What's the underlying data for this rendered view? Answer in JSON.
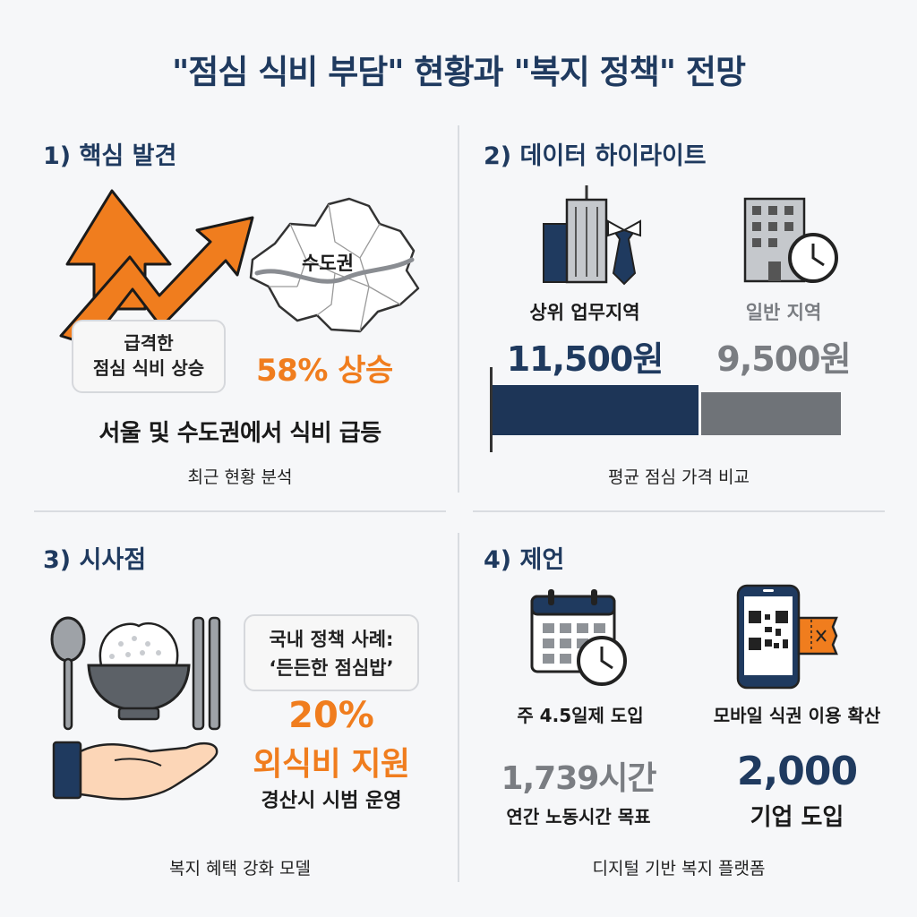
{
  "title": "\"점심 식비 부담\" 현황과 \"복지 정책\" 전망",
  "section1": {
    "heading": "1) 핵심 발견",
    "map_label": "수도권",
    "callout_line1": "급격한",
    "callout_line2": "점심 식비 상승",
    "stat": "58% 상승",
    "summary": "서울 및 수도권에서 식비 급등",
    "caption": "최근 현황 분석",
    "icons": [
      "up-arrow-icon",
      "trend-arrow-icon",
      "seoul-map-icon"
    ]
  },
  "section2": {
    "heading": "2) 데이터 하이라이트",
    "business": {
      "label": "상위 업무지역",
      "price": "11,500원",
      "value": 11500
    },
    "general": {
      "label": "일반 지역",
      "price": "9,500원",
      "value": 9500
    },
    "caption": "평균 점심 가격 비교",
    "icons": [
      "office-tower-tie-icon",
      "building-clock-icon"
    ]
  },
  "section3": {
    "heading": "3) 시사점",
    "callout_line1": "국내 정책 사례:",
    "callout_line2": "‘든든한 점심밥’",
    "stat_line1": "20%",
    "stat_line2": "외식비 지원",
    "detail": "경산시 시범 운영",
    "caption": "복지 혜택 강화 모델",
    "icons": [
      "spoon-icon",
      "rice-bowl-icon",
      "chopsticks-icon",
      "giving-hand-icon"
    ]
  },
  "section4": {
    "heading": "4) 제언",
    "item1_label": "주 4.5일제 도입",
    "item2_label": "모바일 식권 이용 확산",
    "stat1_value": "1,739시간",
    "stat1_desc": "연간 노동시간 목표",
    "stat2_value": "2,000",
    "stat2_desc": "기업 도입",
    "caption": "디지털 기반 복지 플랫폼",
    "icons": [
      "calendar-clock-icon",
      "mobile-qr-ticket-icon"
    ]
  },
  "colors": {
    "navy": "#1f3a5f",
    "orange": "#f07d1e",
    "grey": "#7a7d82",
    "bar_navy": "#1d3557",
    "bar_grey": "#6f7378"
  }
}
